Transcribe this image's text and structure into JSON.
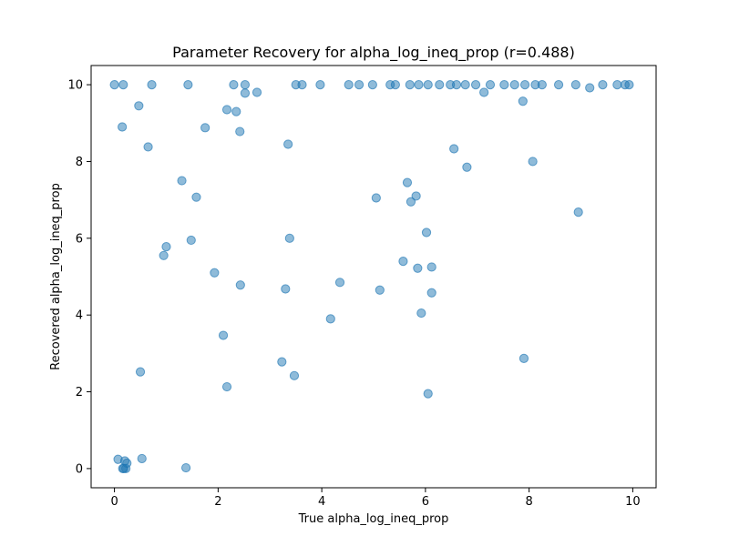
{
  "chart_data": {
    "type": "scatter",
    "title": "Parameter Recovery for alpha_log_ineq_prop (r=0.488)",
    "xlabel": "True alpha_log_ineq_prop",
    "ylabel": "Recovered alpha_log_ineq_prop",
    "xlim": [
      -0.45,
      10.45
    ],
    "ylim": [
      -0.5,
      10.5
    ],
    "xticks": [
      0,
      2,
      4,
      6,
      8,
      10
    ],
    "yticks": [
      0,
      2,
      4,
      6,
      8,
      10
    ],
    "grid": false,
    "marker_color": "#1f77b4",
    "marker_alpha": 0.5,
    "points": [
      [
        0.0,
        10.0
      ],
      [
        0.17,
        10.0
      ],
      [
        0.72,
        10.0
      ],
      [
        1.42,
        10.0
      ],
      [
        2.3,
        10.0
      ],
      [
        2.52,
        10.0
      ],
      [
        3.5,
        10.0
      ],
      [
        3.62,
        10.0
      ],
      [
        3.97,
        10.0
      ],
      [
        4.52,
        10.0
      ],
      [
        4.72,
        10.0
      ],
      [
        4.98,
        10.0
      ],
      [
        5.32,
        10.0
      ],
      [
        5.42,
        10.0
      ],
      [
        5.7,
        10.0
      ],
      [
        5.87,
        10.0
      ],
      [
        6.05,
        10.0
      ],
      [
        6.27,
        10.0
      ],
      [
        6.48,
        10.0
      ],
      [
        6.6,
        10.0
      ],
      [
        6.77,
        10.0
      ],
      [
        6.97,
        10.0
      ],
      [
        7.25,
        10.0
      ],
      [
        7.52,
        10.0
      ],
      [
        7.72,
        10.0
      ],
      [
        7.92,
        10.0
      ],
      [
        8.12,
        10.0
      ],
      [
        8.25,
        10.0
      ],
      [
        8.57,
        10.0
      ],
      [
        8.9,
        10.0
      ],
      [
        9.42,
        10.0
      ],
      [
        9.7,
        10.0
      ],
      [
        9.85,
        10.0
      ],
      [
        9.93,
        10.0
      ],
      [
        2.52,
        9.78
      ],
      [
        2.75,
        9.8
      ],
      [
        7.13,
        9.8
      ],
      [
        9.17,
        9.92
      ],
      [
        0.47,
        9.45
      ],
      [
        2.17,
        9.35
      ],
      [
        2.35,
        9.3
      ],
      [
        7.88,
        9.57
      ],
      [
        0.15,
        8.9
      ],
      [
        1.75,
        8.88
      ],
      [
        2.42,
        8.78
      ],
      [
        0.65,
        8.38
      ],
      [
        3.35,
        8.45
      ],
      [
        6.55,
        8.33
      ],
      [
        6.8,
        7.85
      ],
      [
        8.07,
        8.0
      ],
      [
        1.3,
        7.5
      ],
      [
        1.58,
        7.07
      ],
      [
        5.05,
        7.05
      ],
      [
        5.65,
        7.45
      ],
      [
        5.72,
        6.95
      ],
      [
        5.82,
        7.1
      ],
      [
        8.95,
        6.68
      ],
      [
        1.0,
        5.78
      ],
      [
        0.95,
        5.55
      ],
      [
        1.48,
        5.95
      ],
      [
        3.38,
        6.0
      ],
      [
        6.02,
        6.15
      ],
      [
        1.93,
        5.1
      ],
      [
        2.43,
        4.78
      ],
      [
        3.3,
        4.68
      ],
      [
        4.35,
        4.85
      ],
      [
        5.57,
        5.4
      ],
      [
        5.85,
        5.22
      ],
      [
        6.12,
        5.25
      ],
      [
        5.12,
        4.65
      ],
      [
        6.12,
        4.58
      ],
      [
        4.17,
        3.9
      ],
      [
        5.92,
        4.05
      ],
      [
        2.1,
        3.47
      ],
      [
        0.5,
        2.52
      ],
      [
        3.23,
        2.78
      ],
      [
        3.47,
        2.42
      ],
      [
        7.9,
        2.87
      ],
      [
        2.17,
        2.13
      ],
      [
        6.05,
        1.95
      ],
      [
        0.07,
        0.24
      ],
      [
        0.53,
        0.26
      ],
      [
        0.18,
        0.0
      ],
      [
        0.2,
        0.2
      ],
      [
        0.22,
        0.0
      ],
      [
        0.24,
        0.14
      ],
      [
        0.16,
        0.0
      ],
      [
        1.38,
        0.02
      ]
    ]
  }
}
